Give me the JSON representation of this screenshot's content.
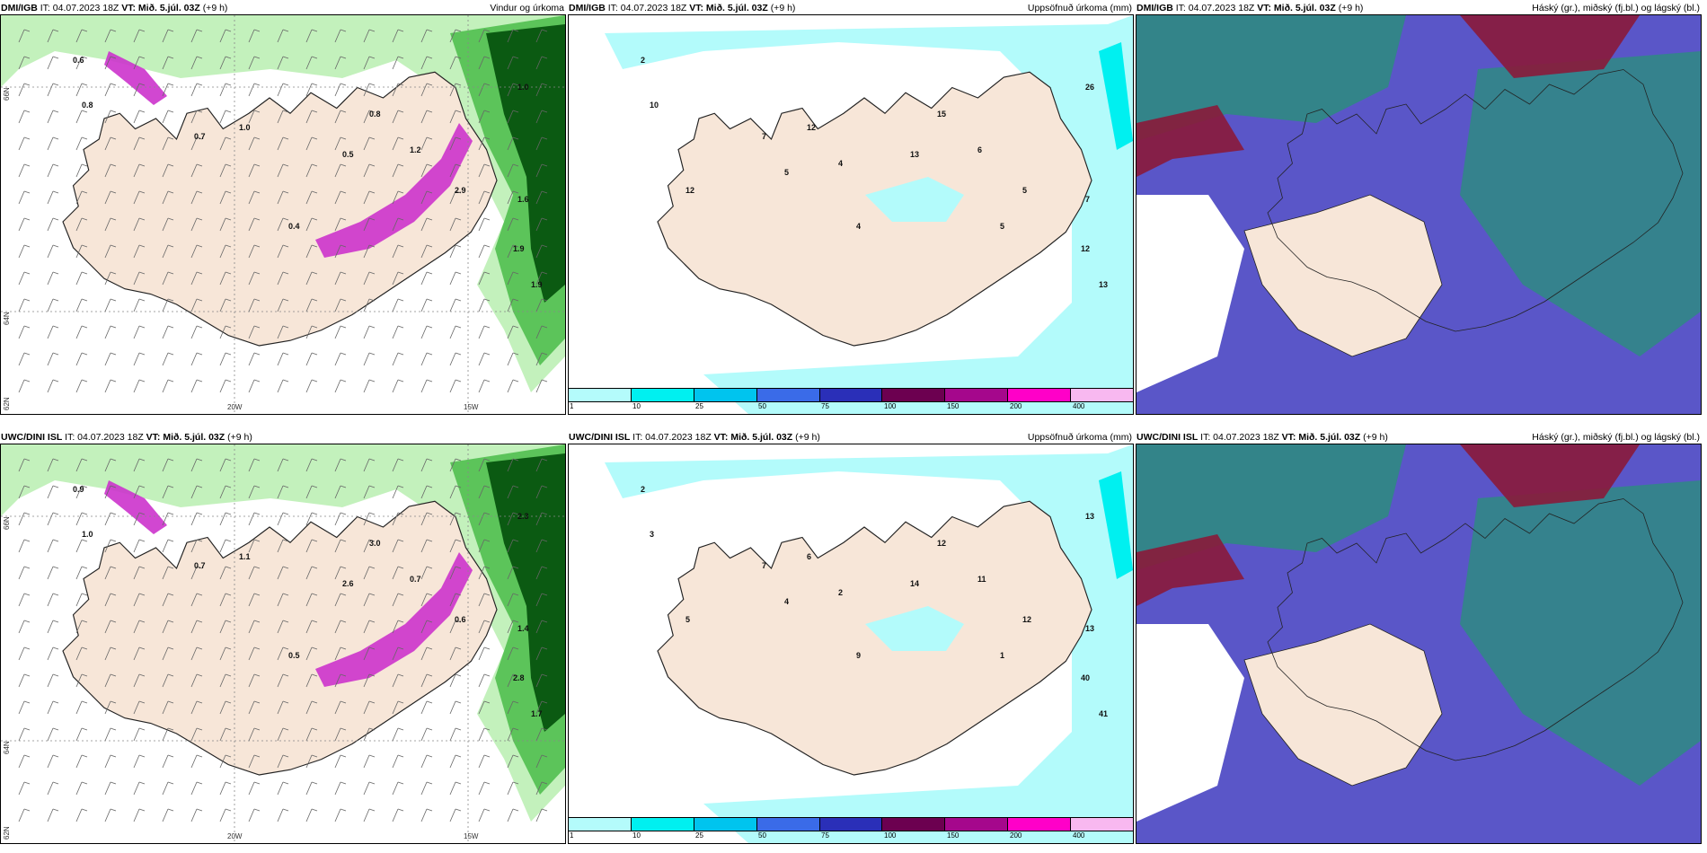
{
  "panels": [
    {
      "id": "p1",
      "model": "DMI/IGB",
      "it_label": "IT:",
      "it": "04.07.2023 18Z",
      "vt_label": "VT:",
      "vt": "Mið. 5.júl. 03Z",
      "lead": "(+9 h)",
      "title": "Vindur og úrkoma",
      "type": "wind"
    },
    {
      "id": "p2",
      "model": "DMI/IGB",
      "it_label": "IT:",
      "it": "04.07.2023 18Z",
      "vt_label": "VT:",
      "vt": "Mið. 5.júl. 03Z",
      "lead": "(+9 h)",
      "title": "Uppsöfnuð úrkoma (mm)",
      "type": "precip"
    },
    {
      "id": "p3",
      "model": "DMI/IGB",
      "it_label": "IT:",
      "it": "04.07.2023 18Z",
      "vt_label": "VT:",
      "vt": "Mið. 5.júl. 03Z",
      "lead": "(+9 h)",
      "title": "Háský (gr.), miðský (fj.bl.) og lágský (bl.)",
      "type": "cloud"
    },
    {
      "id": "p4",
      "model": "UWC/DINI ISL",
      "it_label": "IT:",
      "it": "04.07.2023 18Z",
      "vt_label": "VT:",
      "vt": "Mið. 5.júl. 03Z",
      "lead": "(+9 h)",
      "title": "",
      "type": "wind"
    },
    {
      "id": "p5",
      "model": "UWC/DINI ISL",
      "it_label": "IT:",
      "it": "04.07.2023 18Z",
      "vt_label": "VT:",
      "vt": "Mið. 5.júl. 03Z",
      "lead": "(+9 h)",
      "title": "Uppsöfnuð úrkoma (mm)",
      "type": "precip"
    },
    {
      "id": "p6",
      "model": "UWC/DINI ISL",
      "it_label": "IT:",
      "it": "04.07.2023 18Z",
      "vt_label": "VT:",
      "vt": "Mið. 5.júl. 03Z",
      "lead": "(+9 h)",
      "title": "Háský (gr.), miðský (fj.bl.) og lágský (bl.)",
      "type": "cloud"
    }
  ],
  "axis_labels": {
    "lat_66": "66N",
    "lat_64": "64N",
    "lat_62": "62N",
    "lon_20": "20W",
    "lon_15": "15W"
  },
  "legend": {
    "ticks": [
      "1",
      "10",
      "25",
      "50",
      "75",
      "100",
      "150",
      "200",
      "400"
    ],
    "colors": [
      "#b4fbfb",
      "#00f0f0",
      "#00c4ee",
      "#3a6be8",
      "#2a2fb8",
      "#6c0050",
      "#a5078c",
      "#ff00c8",
      "#f8b8f0"
    ]
  },
  "colors": {
    "land": "#f7e6d8",
    "coast": "#222222",
    "green_light": "#b9efb0",
    "green_mid": "#5cc45a",
    "green_dark": "#0b5a12",
    "magenta": "#cc33cc",
    "cyan_light": "#b3fbfb",
    "cloud_purple": "#5a56c8",
    "cloud_teal": "#2f8a82",
    "cloud_red": "#8a1a3a"
  },
  "wind_values_p1": [
    "0.6",
    "0.8",
    "0.7",
    "1.0",
    "0.5",
    "0.8",
    "1.0",
    "1.9",
    "1.9",
    "1.6",
    "2.9",
    "0.4",
    "1.2"
  ],
  "wind_values_p4": [
    "0.9",
    "1.0",
    "0.7",
    "1.1",
    "2.6",
    "3.0",
    "2.3",
    "2.8",
    "1.7",
    "1.4",
    "0.6",
    "0.5",
    "0.7"
  ],
  "precip_values_p2": [
    "2",
    "10",
    "7",
    "12",
    "13",
    "15",
    "26",
    "12",
    "13",
    "7",
    "5",
    "4",
    "6",
    "5",
    "12",
    "4",
    "5"
  ],
  "precip_values_p5": [
    "2",
    "3",
    "7",
    "6",
    "14",
    "12",
    "13",
    "40",
    "41",
    "13",
    "12",
    "9",
    "11",
    "4",
    "5",
    "2",
    "1"
  ]
}
